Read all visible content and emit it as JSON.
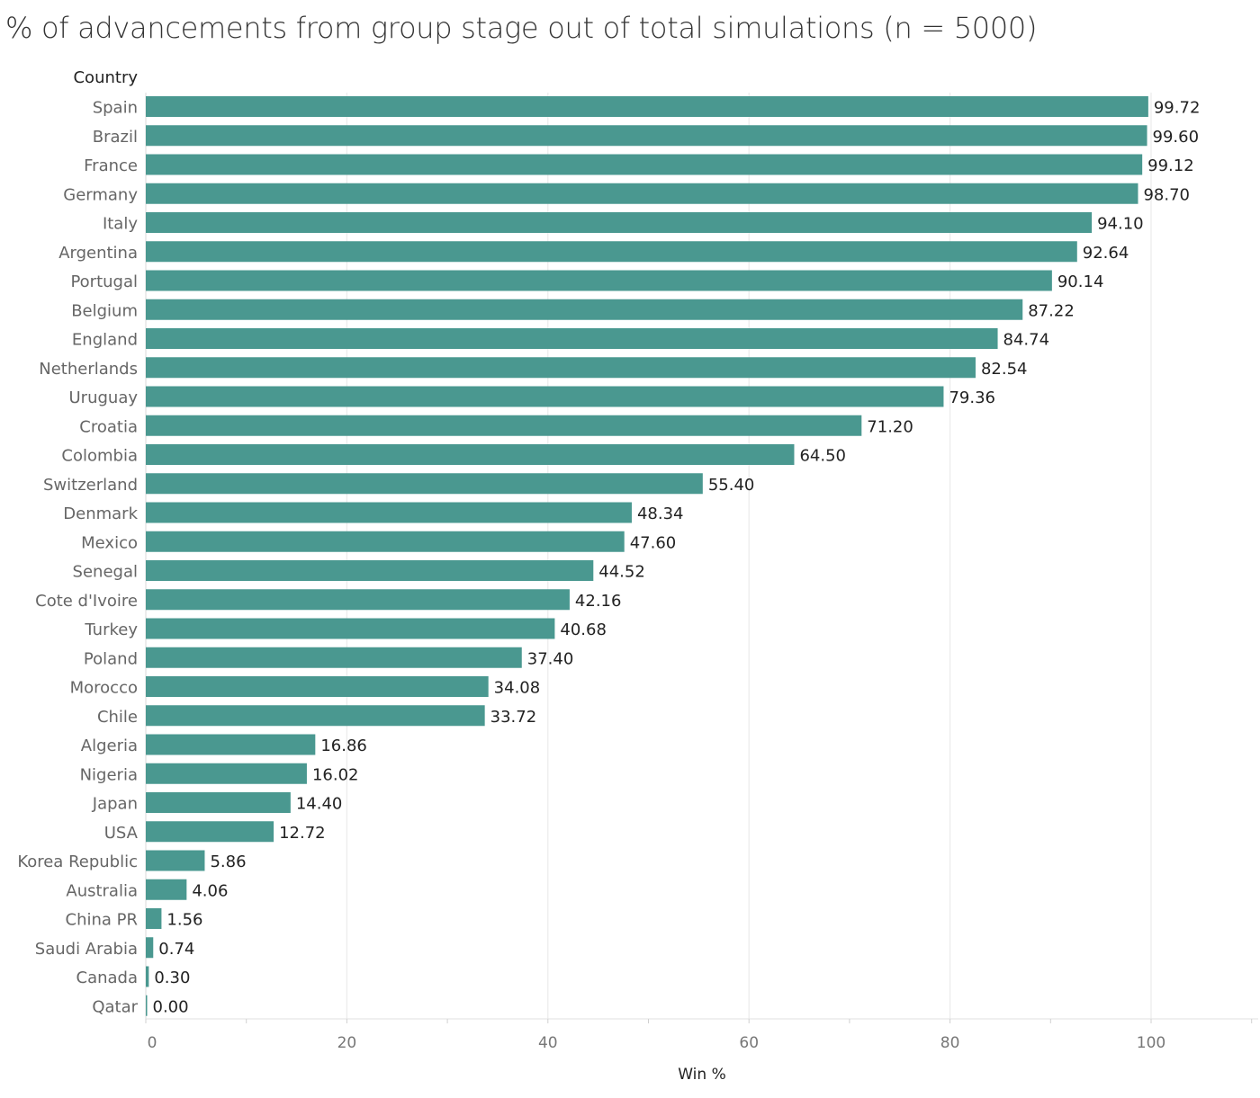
{
  "title": "% of advancements from group stage out of total simulations (n = 5000)",
  "chart_data": {
    "type": "bar",
    "orientation": "horizontal",
    "row_header": "Country",
    "xlabel": "Win %",
    "xlim": [
      0,
      110
    ],
    "xticks": [
      0,
      20,
      40,
      60,
      80,
      100
    ],
    "grid": true,
    "bar_color": "#4A9890",
    "categories": [
      "Spain",
      "Brazil",
      "France",
      "Germany",
      "Italy",
      "Argentina",
      "Portugal",
      "Belgium",
      "England",
      "Netherlands",
      "Uruguay",
      "Croatia",
      "Colombia",
      "Switzerland",
      "Denmark",
      "Mexico",
      "Senegal",
      "Cote d'Ivoire",
      "Turkey",
      "Poland",
      "Morocco",
      "Chile",
      "Algeria",
      "Nigeria",
      "Japan",
      "USA",
      "Korea Republic",
      "Australia",
      "China PR",
      "Saudi Arabia",
      "Canada",
      "Qatar"
    ],
    "values": [
      99.72,
      99.6,
      99.12,
      98.7,
      94.1,
      92.64,
      90.14,
      87.22,
      84.74,
      82.54,
      79.36,
      71.2,
      64.5,
      55.4,
      48.34,
      47.6,
      44.52,
      42.16,
      40.68,
      37.4,
      34.08,
      33.72,
      16.86,
      16.02,
      14.4,
      12.72,
      5.86,
      4.06,
      1.56,
      0.74,
      0.3,
      0.0
    ],
    "value_labels": [
      "99.72",
      "99.60",
      "99.12",
      "98.70",
      "94.10",
      "92.64",
      "90.14",
      "87.22",
      "84.74",
      "82.54",
      "79.36",
      "71.20",
      "64.50",
      "55.40",
      "48.34",
      "47.60",
      "44.52",
      "42.16",
      "40.68",
      "37.40",
      "34.08",
      "33.72",
      "16.86",
      "16.02",
      "14.40",
      "12.72",
      "5.86",
      "4.06",
      "1.56",
      "0.74",
      "0.30",
      "0.00"
    ]
  }
}
